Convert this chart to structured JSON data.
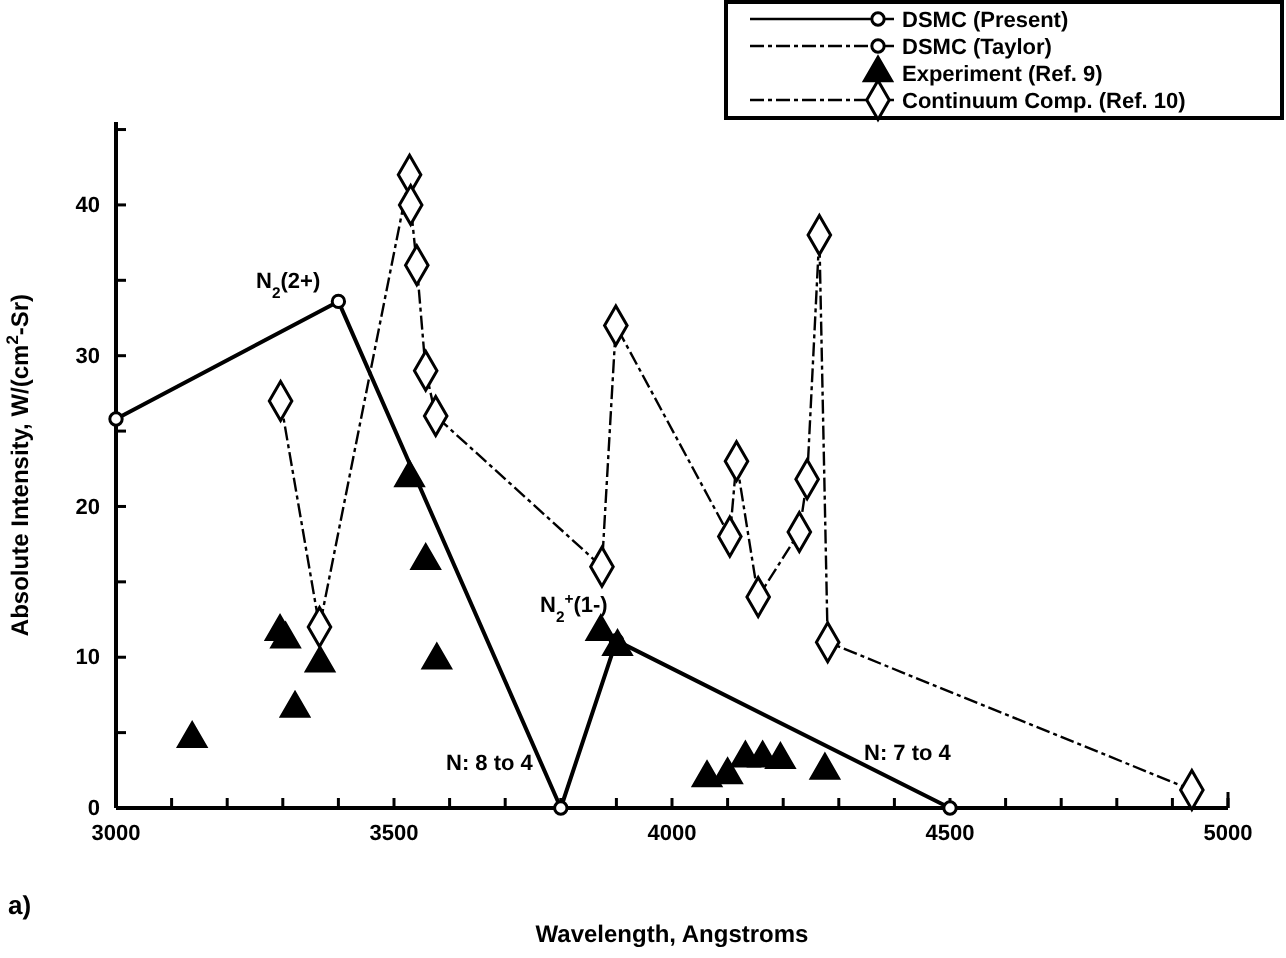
{
  "chart_data": {
    "type": "line",
    "xlabel": "Wavelength, Angstroms",
    "ylabel": "Absolute Intensity, W/(cm$^{2}$-Sr)",
    "xlim": [
      3000,
      5000
    ],
    "ylim": [
      0,
      45.5
    ],
    "xticks": [
      3000,
      {
        "value": 3100,
        "label": null
      },
      {
        "value": 3200,
        "label": null
      },
      {
        "value": 3300,
        "label": null
      },
      {
        "value": 3400,
        "label": null
      },
      3500,
      {
        "value": 3600,
        "label": null
      },
      {
        "value": 3700,
        "label": null
      },
      {
        "value": 3800,
        "label": null
      },
      {
        "value": 3900,
        "label": null
      },
      4000,
      {
        "value": 4100,
        "label": null
      },
      {
        "value": 4200,
        "label": null
      },
      {
        "value": 4300,
        "label": null
      },
      {
        "value": 4400,
        "label": null
      },
      4500,
      {
        "value": 4600,
        "label": null
      },
      {
        "value": 4700,
        "label": null
      },
      {
        "value": 4800,
        "label": null
      },
      {
        "value": 4900,
        "label": null
      },
      5000
    ],
    "yticks": [
      0,
      {
        "value": 5,
        "label": null
      },
      10,
      {
        "value": 15,
        "label": null
      },
      20,
      {
        "value": 25,
        "label": null
      },
      30,
      {
        "value": 35,
        "label": null
      },
      40,
      {
        "value": 45,
        "label": null
      }
    ],
    "grid": false,
    "legend": "top right",
    "series": [
      {
        "name": "DSMC (Present)",
        "color": "#000000",
        "marker": "circle",
        "line_style": "solid",
        "x": [
          3000,
          3400,
          3800,
          3900,
          4500
        ],
        "values": [
          25.8,
          33.6,
          0,
          11.1,
          0
        ]
      },
      {
        "name": "DSMC (Taylor)",
        "color": "#000000",
        "marker": "circle",
        "line_style": "dashed"
      },
      {
        "name": "Experiment (Ref. 9)",
        "type": "scatter",
        "color": "#000000",
        "marker": "triangle",
        "x": [
          3137,
          3295,
          3305,
          3322,
          3367,
          3528,
          3557,
          3577,
          3872,
          3902,
          4063,
          4100,
          4132,
          4163,
          4195,
          4275
        ],
        "values": [
          4.6,
          11.7,
          11.2,
          6.6,
          9.6,
          21.9,
          16.4,
          9.8,
          11.7,
          10.7,
          2.0,
          2.2,
          3.3,
          3.3,
          3.2,
          2.5
        ]
      },
      {
        "name": "Continuum Comp. (Ref. 10)",
        "color": "#000000",
        "marker": "diamond",
        "line_style": "dashed",
        "x": [
          3296,
          3366,
          3528,
          3530,
          3541,
          3557,
          3575,
          3874,
          3899,
          4104,
          4116,
          4155,
          4229,
          4243,
          4265,
          4280,
          4935
        ],
        "values": [
          27,
          12,
          42,
          40,
          36,
          29,
          26,
          16,
          32,
          18,
          23,
          14,
          18.3,
          21.8,
          38,
          11,
          1.2
        ]
      }
    ],
    "annotations": [
      "N$_{2}$(2+)",
      "N$_{2}$$^{+}$(1-)",
      "N: 8 to 4",
      "N: 7 to 4",
      "a)"
    ]
  }
}
